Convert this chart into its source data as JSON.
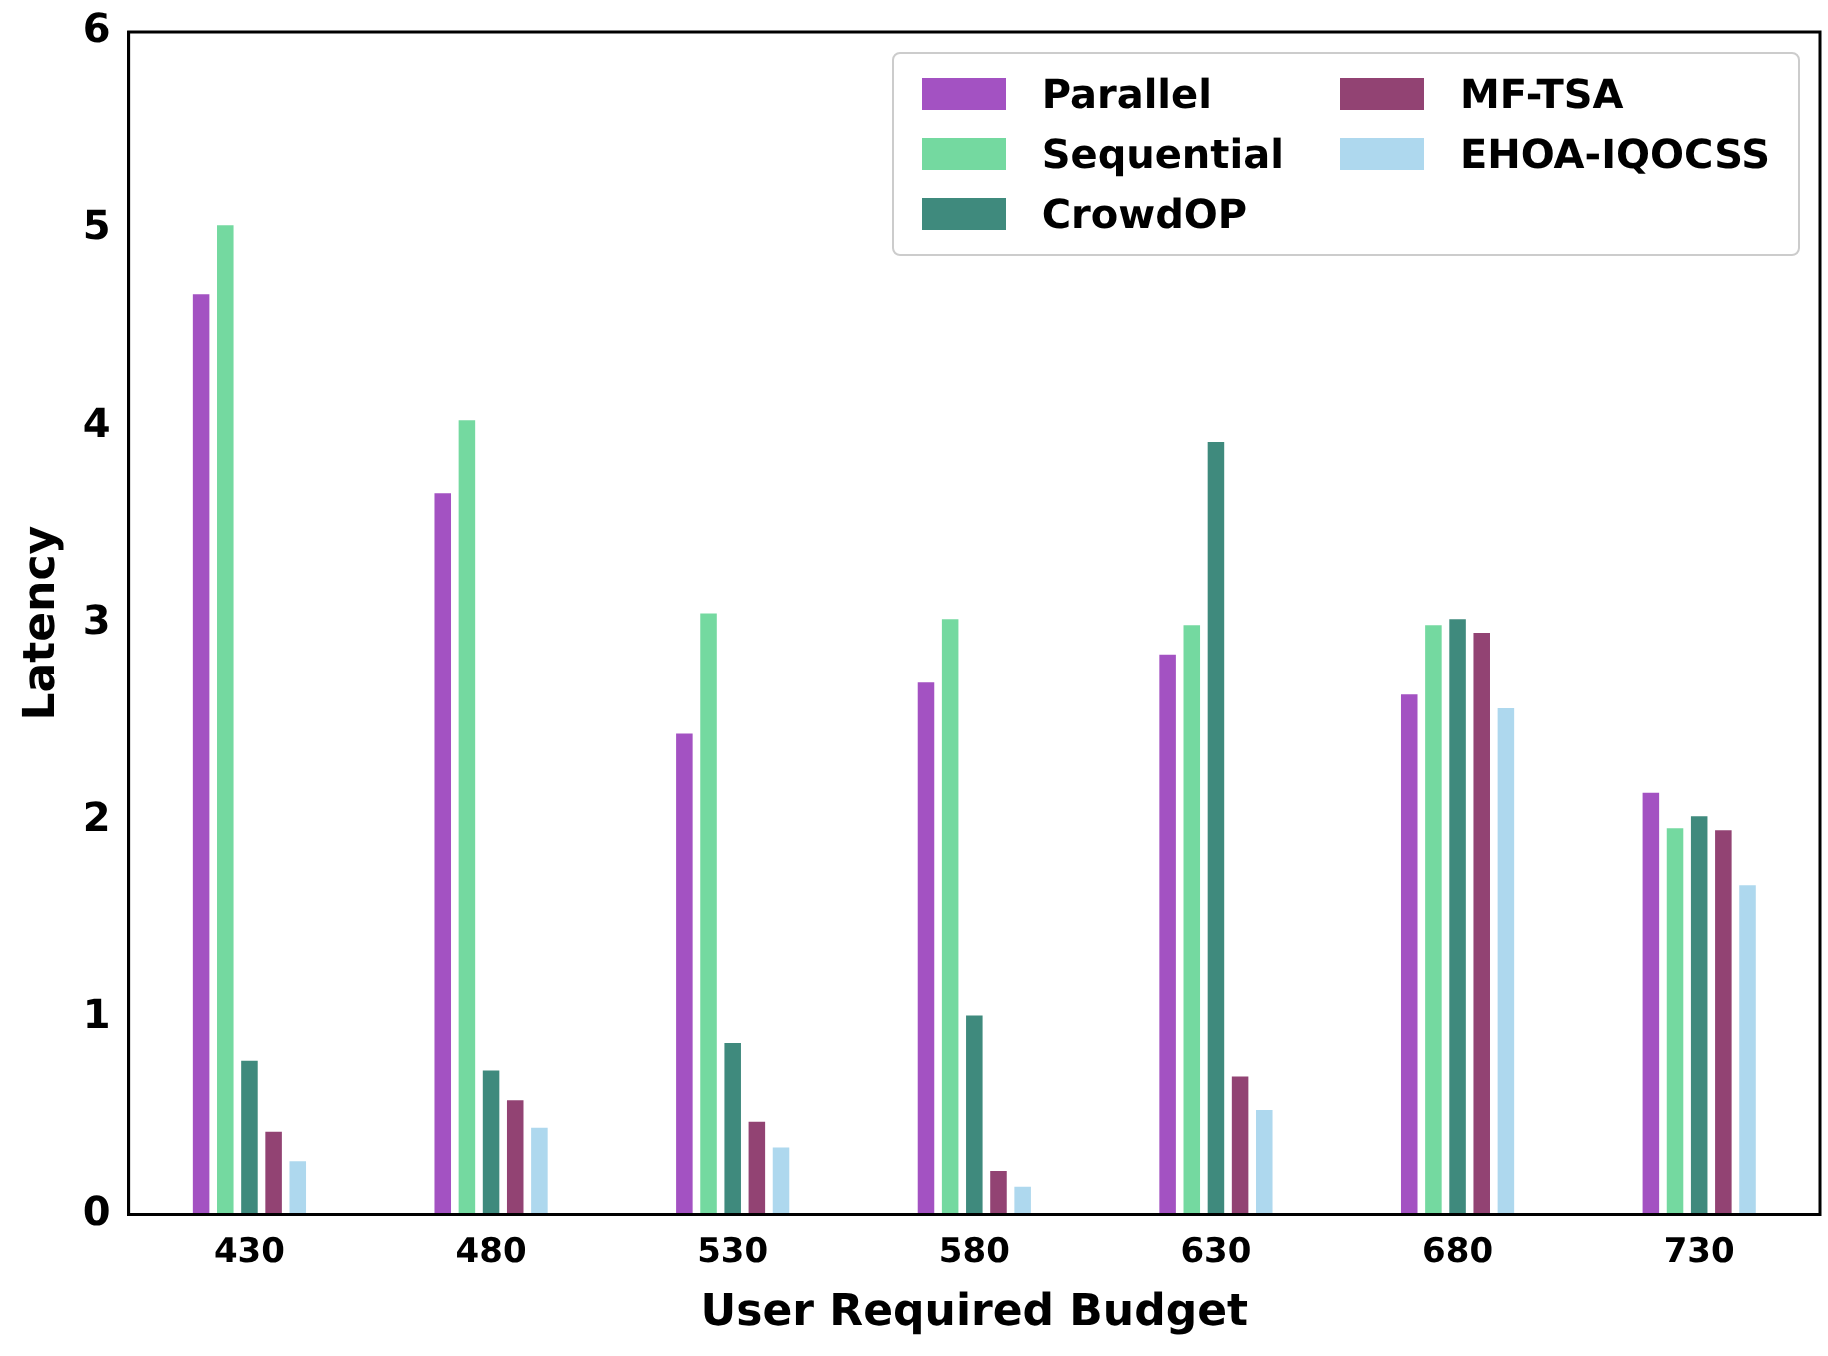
{
  "chart_data": {
    "type": "bar",
    "xlabel": "User Required Budget",
    "ylabel": "Latency",
    "categories": [
      "430",
      "480",
      "530",
      "580",
      "630",
      "680",
      "730"
    ],
    "series": [
      {
        "name": "Parallel",
        "color": "#a352c2",
        "values": [
          4.68,
          3.67,
          2.45,
          2.71,
          2.85,
          2.65,
          2.15
        ]
      },
      {
        "name": "Sequential",
        "color": "#74d9a0",
        "values": [
          5.03,
          4.04,
          3.06,
          3.03,
          3.0,
          3.0,
          1.97
        ]
      },
      {
        "name": "CrowdOP",
        "color": "#3f8a7d",
        "values": [
          0.79,
          0.74,
          0.88,
          1.02,
          3.93,
          3.03,
          2.03
        ]
      },
      {
        "name": "MF-TSA",
        "color": "#924373",
        "values": [
          0.43,
          0.59,
          0.48,
          0.23,
          0.71,
          2.96,
          1.96
        ]
      },
      {
        "name": "EHOA-IQOCSS",
        "color": "#aed8ee",
        "values": [
          0.28,
          0.45,
          0.35,
          0.15,
          0.54,
          2.58,
          1.68
        ]
      }
    ],
    "ylim": [
      0,
      6
    ],
    "yticks": [
      0,
      1,
      2,
      3,
      4,
      5,
      6
    ],
    "grid": false,
    "legend": "top right"
  }
}
